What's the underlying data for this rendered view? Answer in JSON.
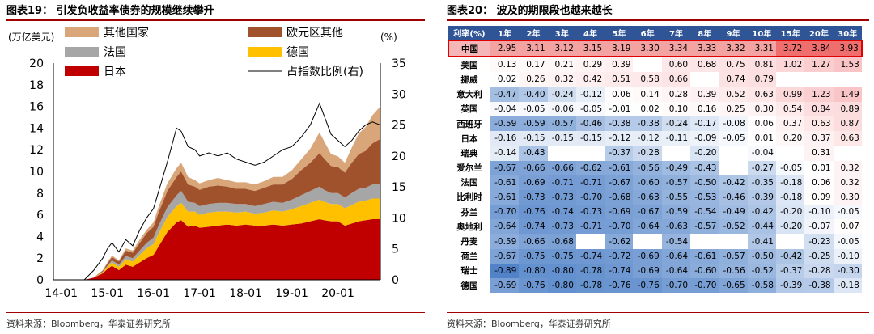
{
  "left": {
    "title": "图表19： 引发负收益率债券的规模继续攀升",
    "source": "资料来源：Bloomberg，华泰证券研究所"
  },
  "right": {
    "title": "图表20： 波及的期限段也越来越长",
    "source": "资料来源：Bloomberg，华泰证券研究所"
  },
  "chart_data": [
    {
      "type": "area",
      "stacked": true,
      "title": "图表19： 引发负收益率债券的规模继续攀升",
      "y_left_label": "(万亿美元)",
      "y_right_label": "(%)",
      "ylim_left": [
        0,
        20
      ],
      "ylim_right": [
        0,
        35
      ],
      "yticks_left": [
        0,
        2,
        4,
        6,
        8,
        10,
        12,
        14,
        16,
        18,
        20
      ],
      "yticks_right": [
        0,
        5,
        10,
        15,
        20,
        25,
        30,
        35
      ],
      "x_ticks": [
        "14-01",
        "15-01",
        "16-01",
        "17-01",
        "18-01",
        "19-01",
        "20-01"
      ],
      "x_start": 2013.83,
      "x_end": 2020.92,
      "legend_placement": "top",
      "x": [
        2013.83,
        2014.5,
        2014.7,
        2014.9,
        2015.0,
        2015.1,
        2015.25,
        2015.4,
        2015.55,
        2015.7,
        2015.85,
        2016.0,
        2016.1,
        2016.3,
        2016.5,
        2016.6,
        2016.75,
        2016.9,
        2017.0,
        2017.2,
        2017.4,
        2017.6,
        2017.8,
        2018.0,
        2018.2,
        2018.4,
        2018.6,
        2018.8,
        2019.0,
        2019.2,
        2019.4,
        2019.6,
        2019.7,
        2019.85,
        2020.0,
        2020.15,
        2020.3,
        2020.45,
        2020.6,
        2020.75,
        2020.92
      ],
      "series": [
        {
          "name": "日本",
          "color": "#c00000",
          "values": [
            0,
            0,
            0.2,
            0.6,
            1.0,
            1.3,
            0.9,
            1.4,
            1.2,
            1.6,
            2.0,
            2.3,
            3.0,
            4.4,
            5.3,
            5.5,
            4.9,
            5.0,
            4.8,
            4.9,
            5.0,
            5.1,
            5.0,
            5.1,
            5.0,
            5.0,
            5.1,
            5.0,
            5.1,
            5.2,
            5.4,
            5.6,
            5.5,
            5.4,
            5.4,
            5.0,
            5.2,
            5.4,
            5.5,
            5.6,
            5.6
          ]
        },
        {
          "name": "德国",
          "color": "#ffc000",
          "values": [
            0,
            0,
            0,
            0.1,
            0.2,
            0.3,
            0.3,
            0.5,
            0.5,
            0.7,
            0.9,
            1.0,
            1.2,
            1.4,
            1.5,
            1.6,
            1.4,
            1.3,
            1.2,
            1.3,
            1.3,
            1.2,
            1.2,
            1.2,
            1.1,
            1.2,
            1.3,
            1.3,
            1.4,
            1.6,
            1.7,
            1.8,
            1.7,
            1.6,
            1.6,
            1.6,
            1.7,
            1.8,
            1.8,
            1.9,
            1.9
          ]
        },
        {
          "name": "法国",
          "color": "#a6a6a6",
          "values": [
            0,
            0,
            0,
            0.05,
            0.1,
            0.2,
            0.2,
            0.3,
            0.3,
            0.4,
            0.5,
            0.6,
            0.7,
            0.9,
            1.0,
            1.1,
            0.9,
            0.8,
            0.8,
            0.8,
            0.8,
            0.8,
            0.8,
            0.7,
            0.7,
            0.8,
            0.8,
            0.8,
            0.9,
            1.0,
            1.1,
            1.2,
            1.1,
            1.0,
            1.0,
            1.0,
            1.1,
            1.2,
            1.2,
            1.3,
            1.3
          ]
        },
        {
          "name": "欧元区其他",
          "color": "#a0522d",
          "values": [
            0,
            0,
            0,
            0.1,
            0.2,
            0.3,
            0.3,
            0.5,
            0.5,
            0.7,
            0.9,
            1.0,
            1.2,
            1.5,
            1.7,
            1.8,
            1.6,
            1.5,
            1.5,
            1.6,
            1.6,
            1.5,
            1.4,
            1.4,
            1.4,
            1.5,
            1.6,
            1.7,
            1.9,
            2.3,
            2.6,
            3.1,
            2.9,
            2.5,
            2.4,
            2.3,
            2.8,
            3.2,
            3.4,
            3.8,
            4.2
          ]
        },
        {
          "name": "其他国家",
          "color": "#d9a679",
          "values": [
            0,
            0,
            0,
            0.05,
            0.1,
            0.15,
            0.1,
            0.2,
            0.2,
            0.3,
            0.3,
            0.4,
            0.5,
            0.7,
            0.8,
            0.8,
            0.7,
            0.6,
            0.6,
            0.6,
            0.7,
            0.6,
            0.6,
            0.6,
            0.6,
            0.6,
            0.7,
            0.7,
            0.8,
            1.0,
            1.3,
            1.9,
            1.6,
            1.1,
            1.0,
            0.9,
            1.4,
            1.9,
            2.2,
            2.6,
            3.0
          ]
        }
      ],
      "line_series": {
        "name": "占指数比例(右)",
        "axis": "right",
        "color": "#000000",
        "values": [
          0,
          0,
          1.5,
          3.5,
          5.0,
          6.0,
          4.5,
          6.5,
          5.5,
          8.0,
          10.0,
          11.5,
          14.0,
          19.0,
          24.5,
          24.0,
          21.5,
          21.0,
          20.0,
          20.5,
          20.0,
          20.5,
          19.5,
          19.0,
          18.5,
          19.0,
          20.0,
          21.0,
          21.5,
          23.0,
          25.0,
          28.5,
          26.5,
          23.5,
          22.5,
          21.5,
          22.5,
          24.0,
          25.0,
          25.5,
          25.0
        ]
      }
    },
    {
      "type": "heatmap",
      "title": "图表20： 波及的期限段也越来越长",
      "corner_label": "利率(%)",
      "columns": [
        "1年",
        "2年",
        "3年",
        "4年",
        "5年",
        "6年",
        "7年",
        "8年",
        "9年",
        "10年",
        "15年",
        "20年",
        "30年"
      ],
      "highlight_row": "中国",
      "rows": [
        {
          "label": "中国",
          "values": [
            "2.95",
            "3.11",
            "3.12",
            "3.15",
            "3.19",
            "3.30",
            "3.34",
            "3.33",
            "3.32",
            "3.31",
            "3.72",
            "3.84",
            "3.93"
          ]
        },
        {
          "label": "美国",
          "values": [
            "0.13",
            "0.17",
            "0.21",
            "0.29",
            "0.39",
            "",
            "0.60",
            "0.68",
            "0.75",
            "0.81",
            "1.02",
            "1.27",
            "1.53"
          ]
        },
        {
          "label": "挪威",
          "values": [
            "0.02",
            "0.26",
            "0.32",
            "0.42",
            "0.51",
            "0.58",
            "0.66",
            "",
            "0.74",
            "0.79",
            "",
            "",
            ""
          ]
        },
        {
          "label": "意大利",
          "values": [
            "-0.47",
            "-0.40",
            "-0.24",
            "-0.12",
            "0.06",
            "0.14",
            "0.28",
            "0.39",
            "0.52",
            "0.63",
            "0.99",
            "1.23",
            "1.49"
          ]
        },
        {
          "label": "英国",
          "values": [
            "-0.04",
            "-0.05",
            "-0.06",
            "-0.05",
            "-0.01",
            "0.02",
            "0.10",
            "0.16",
            "0.25",
            "0.30",
            "0.54",
            "0.84",
            "0.89"
          ]
        },
        {
          "label": "西班牙",
          "values": [
            "-0.59",
            "-0.59",
            "-0.57",
            "-0.46",
            "-0.38",
            "-0.38",
            "-0.24",
            "-0.17",
            "-0.08",
            "0.06",
            "0.37",
            "0.63",
            "0.87"
          ]
        },
        {
          "label": "日本",
          "values": [
            "-0.16",
            "-0.15",
            "-0.15",
            "-0.15",
            "-0.12",
            "-0.12",
            "-0.11",
            "-0.09",
            "-0.05",
            "0.01",
            "0.20",
            "0.37",
            "0.63"
          ]
        },
        {
          "label": "瑞典",
          "values": [
            "-0.14",
            "-0.43",
            "",
            "",
            "-0.37",
            "-0.28",
            "",
            "-0.20",
            "",
            "-0.04",
            "",
            "0.31",
            ""
          ]
        },
        {
          "label": "爱尔兰",
          "values": [
            "-0.67",
            "-0.66",
            "-0.66",
            "-0.62",
            "-0.61",
            "-0.56",
            "-0.49",
            "-0.43",
            "",
            "-0.27",
            "-0.05",
            "0.01",
            "0.32"
          ]
        },
        {
          "label": "法国",
          "values": [
            "-0.61",
            "-0.69",
            "-0.71",
            "-0.71",
            "-0.67",
            "-0.60",
            "-0.57",
            "-0.50",
            "-0.42",
            "-0.35",
            "-0.18",
            "0.06",
            "0.32"
          ]
        },
        {
          "label": "比利时",
          "values": [
            "-0.61",
            "-0.73",
            "-0.73",
            "-0.70",
            "-0.68",
            "-0.63",
            "-0.55",
            "-0.53",
            "-0.46",
            "-0.39",
            "-0.18",
            "0.09",
            "0.30"
          ]
        },
        {
          "label": "芬兰",
          "values": [
            "-0.70",
            "-0.76",
            "-0.74",
            "-0.73",
            "-0.69",
            "-0.67",
            "-0.59",
            "-0.54",
            "-0.49",
            "-0.42",
            "-0.20",
            "-0.10",
            "-0.05"
          ]
        },
        {
          "label": "奥地利",
          "values": [
            "-0.64",
            "-0.74",
            "-0.73",
            "-0.71",
            "-0.70",
            "-0.64",
            "-0.63",
            "-0.57",
            "-0.52",
            "-0.44",
            "-0.20",
            "-0.07",
            "0.07"
          ]
        },
        {
          "label": "丹麦",
          "values": [
            "-0.59",
            "-0.66",
            "-0.68",
            "",
            "-0.62",
            "",
            "-0.54",
            "",
            "",
            "-0.41",
            "",
            "-0.23",
            "-0.05"
          ]
        },
        {
          "label": "荷兰",
          "values": [
            "-0.67",
            "-0.75",
            "-0.75",
            "-0.74",
            "-0.72",
            "-0.69",
            "-0.64",
            "-0.61",
            "-0.57",
            "-0.50",
            "-0.42",
            "-0.25",
            "-0.10"
          ]
        },
        {
          "label": "瑞士",
          "values": [
            "-0.89",
            "-0.80",
            "-0.80",
            "-0.78",
            "-0.74",
            "-0.69",
            "-0.64",
            "-0.60",
            "-0.56",
            "-0.52",
            "-0.37",
            "-0.28",
            "-0.30"
          ]
        },
        {
          "label": "德国",
          "values": [
            "-0.69",
            "-0.76",
            "-0.80",
            "-0.78",
            "-0.76",
            "-0.76",
            "-0.70",
            "-0.70",
            "-0.65",
            "-0.58",
            "-0.39",
            "-0.38",
            "-0.18"
          ]
        }
      ]
    }
  ]
}
